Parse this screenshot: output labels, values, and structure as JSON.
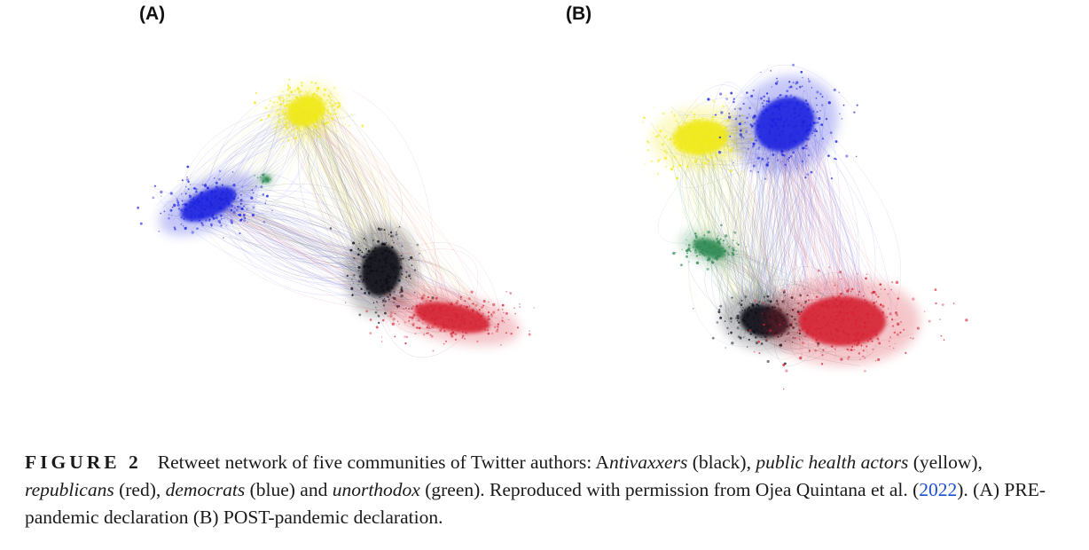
{
  "panels": [
    {
      "label": "(A)"
    },
    {
      "label": "(B)"
    }
  ],
  "communities": [
    {
      "name": "Antivaxxers",
      "color": "#0b0f17"
    },
    {
      "name": "public health actors",
      "color": "#f1ea19"
    },
    {
      "name": "republicans",
      "color": "#d62233"
    },
    {
      "name": "democrats",
      "color": "#1a22e0"
    },
    {
      "name": "unorthodox",
      "color": "#2f8a52"
    }
  ],
  "caption": {
    "figure_label": "FIGURE 2",
    "part1": "Retweet network of five communities of Twitter authors: A",
    "antivaxxers": "ntivaxxers",
    "part2": " (black), ",
    "public_health": "public health actors",
    "part3": " (yellow), ",
    "republicans": "republicans",
    "part4": " (red), ",
    "democrats": "democrats",
    "part5": " (blue) and ",
    "unorthodox": "unorthodox",
    "part6": " (green). Reproduced with permission from Ojea Quintana et al. (",
    "citation_year": "2022",
    "part7": "). (A) PRE-pandemic declaration (B) POST-pandemic declaration."
  }
}
